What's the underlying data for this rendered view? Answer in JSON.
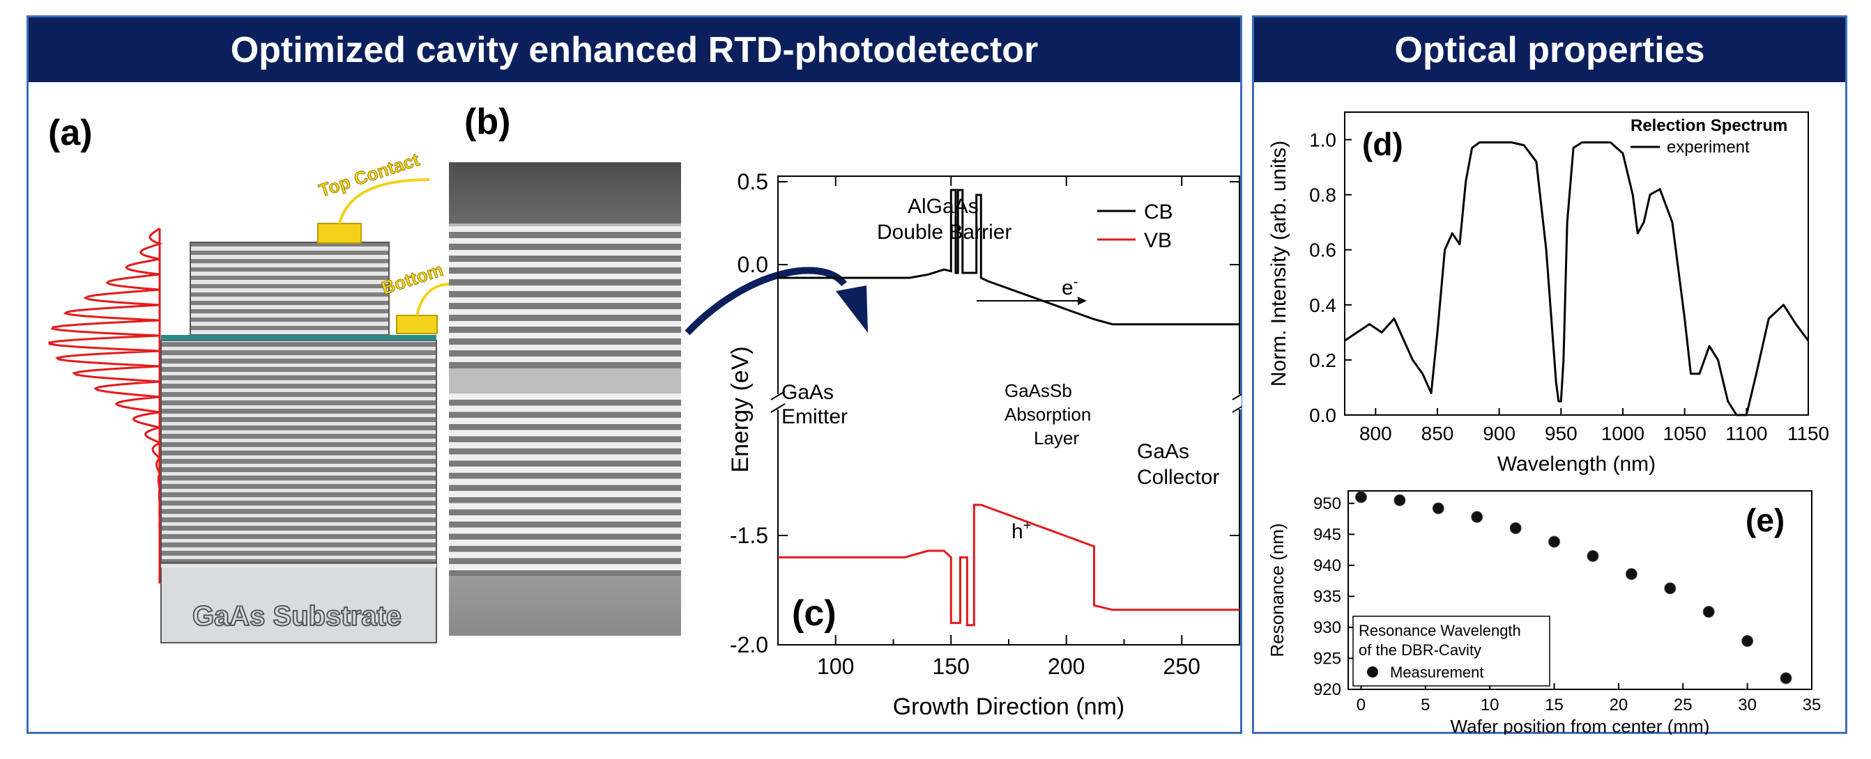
{
  "left_panel": {
    "title": "Optimized cavity enhanced RTD-photodetector",
    "panel_a": {
      "label": "(a)",
      "top_contact": "Top Contact",
      "bottom_contact": "Bottom",
      "substrate": "GaAs Substrate"
    },
    "panel_b": {
      "label": "(b)"
    },
    "panel_c": {
      "label": "(c)",
      "barrier_line1": "AlGaAs",
      "barrier_line2": "Double Barrier",
      "emitter_line1": "GaAs",
      "emitter_line2": "Emitter",
      "absorption_line1": "GaAsSb",
      "absorption_line2": "Absorption",
      "absorption_line3": "Layer",
      "collector_line1": "GaAs",
      "collector_line2": "Collector",
      "electron": "e",
      "electron_sup": "-",
      "hole": "h",
      "hole_sup": "+",
      "legend_cb": "CB",
      "legend_vb": "VB",
      "cb_color": "#000000",
      "vb_color": "#e31a1c",
      "arrow_color": "#0b1f5c"
    }
  },
  "right_panel": {
    "title": "Optical properties"
  },
  "chart_data": [
    {
      "type": "line",
      "panel": "(c)",
      "xlabel": "Growth Direction (nm)",
      "ylabel": "Energy (eV)",
      "xlim": [
        75,
        275
      ],
      "xticks": [
        "100",
        "150",
        "200",
        "250"
      ],
      "yticks_upper": [
        "0.5",
        "0.0"
      ],
      "yticks_lower": [
        "-1.5",
        "-2.0"
      ],
      "series": [
        {
          "name": "CB",
          "x": [
            75,
            132,
            140,
            147,
            150,
            150,
            152,
            152,
            153,
            153,
            155,
            155,
            161,
            161,
            163,
            163,
            166,
            212,
            220,
            275
          ],
          "y": [
            -0.08,
            -0.08,
            -0.06,
            -0.03,
            -0.04,
            0.45,
            0.45,
            -0.05,
            -0.05,
            0.45,
            0.45,
            -0.05,
            -0.05,
            0.42,
            0.42,
            -0.08,
            -0.1,
            -0.33,
            -0.36,
            -0.36
          ]
        },
        {
          "name": "VB",
          "x": [
            75,
            130,
            140,
            147,
            150,
            150,
            154,
            154,
            157,
            157,
            160,
            160,
            163,
            163,
            212,
            212,
            220,
            275
          ],
          "y": [
            -1.6,
            -1.6,
            -1.57,
            -1.57,
            -1.6,
            -1.9,
            -1.9,
            -1.6,
            -1.6,
            -1.91,
            -1.91,
            -1.36,
            -1.36,
            -1.36,
            -1.55,
            -1.82,
            -1.84,
            -1.84
          ]
        }
      ]
    },
    {
      "type": "line",
      "panel": "(d)",
      "title": "Relection Spectrum",
      "legend": [
        "experiment"
      ],
      "xlabel": "Wavelength (nm)",
      "ylabel": "Norm. Intensity (arb. units)",
      "xlim": [
        775,
        1150
      ],
      "ylim": [
        0.0,
        1.1
      ],
      "xticks": [
        "800",
        "850",
        "900",
        "950",
        "1000",
        "1050",
        "1100",
        "1150"
      ],
      "yticks": [
        "0.0",
        "0.2",
        "0.4",
        "0.6",
        "0.8",
        "1.0"
      ],
      "series": [
        {
          "name": "experiment",
          "x": [
            775,
            785,
            795,
            805,
            815,
            822,
            830,
            838,
            845,
            850,
            856,
            862,
            868,
            873,
            878,
            884,
            890,
            900,
            910,
            920,
            930,
            938,
            943,
            946,
            948,
            950,
            952,
            955,
            960,
            967,
            975,
            990,
            1000,
            1008,
            1012,
            1017,
            1022,
            1030,
            1040,
            1050,
            1055,
            1062,
            1070,
            1077,
            1085,
            1092,
            1100,
            1108,
            1118,
            1130,
            1140,
            1150
          ],
          "y": [
            0.27,
            0.3,
            0.33,
            0.3,
            0.35,
            0.28,
            0.2,
            0.15,
            0.08,
            0.3,
            0.6,
            0.66,
            0.62,
            0.85,
            0.97,
            0.99,
            0.99,
            0.99,
            0.99,
            0.98,
            0.92,
            0.6,
            0.3,
            0.12,
            0.05,
            0.05,
            0.2,
            0.7,
            0.97,
            0.99,
            0.99,
            0.99,
            0.95,
            0.8,
            0.66,
            0.7,
            0.8,
            0.82,
            0.7,
            0.35,
            0.15,
            0.15,
            0.25,
            0.2,
            0.05,
            0.0,
            0.0,
            0.15,
            0.35,
            0.4,
            0.33,
            0.27
          ]
        }
      ]
    },
    {
      "type": "scatter",
      "panel": "(e)",
      "xlabel": "Wafer position from center (mm)",
      "ylabel": "Resonance (nm)",
      "xlim": [
        -1,
        35
      ],
      "ylim": [
        920,
        952
      ],
      "xticks": [
        "0",
        "5",
        "10",
        "15",
        "20",
        "25",
        "30",
        "35"
      ],
      "yticks": [
        "920",
        "925",
        "930",
        "935",
        "940",
        "945",
        "950"
      ],
      "legend_title_line1": "Resonance Wavelength",
      "legend_title_line2": "of the DBR-Cavity",
      "series": [
        {
          "name": "Measurement",
          "x": [
            0,
            3,
            6,
            9,
            12,
            15,
            18,
            21,
            24,
            27,
            30,
            33
          ],
          "y": [
            951,
            950.5,
            949.2,
            947.8,
            946,
            943.8,
            941.5,
            938.6,
            936.3,
            932.5,
            927.8,
            921.8
          ]
        }
      ]
    }
  ]
}
